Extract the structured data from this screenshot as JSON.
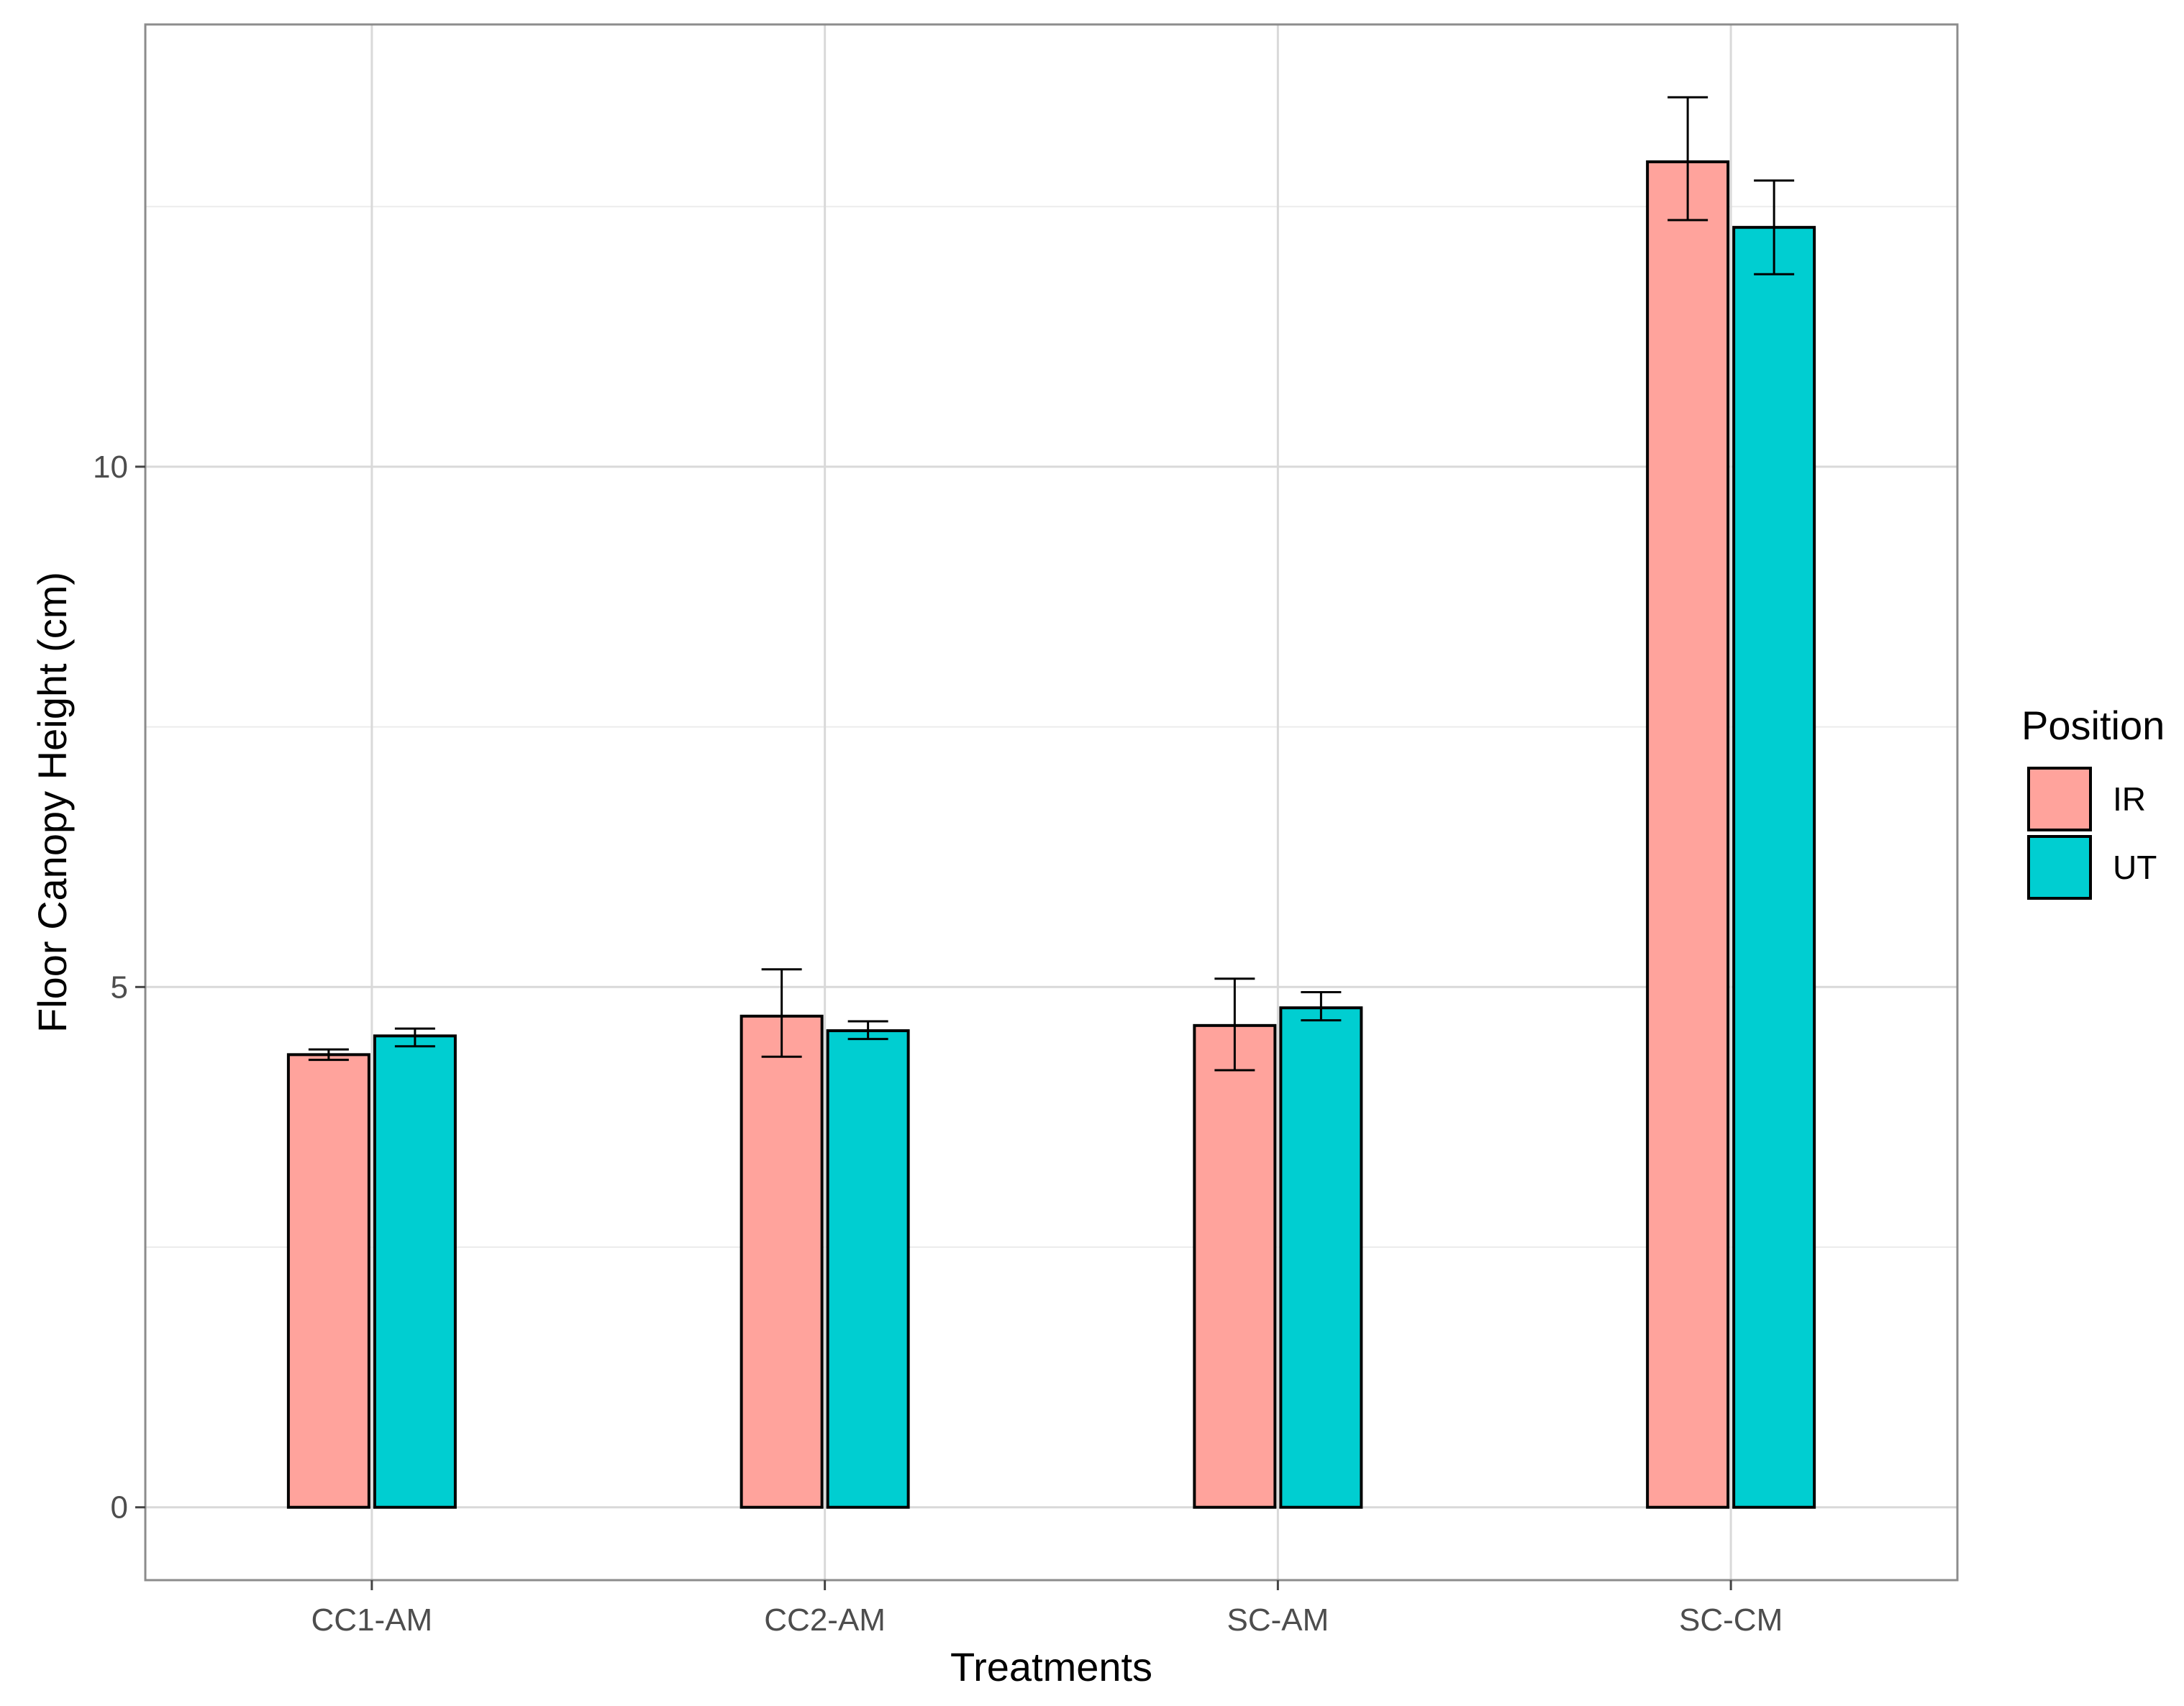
{
  "chart_data": {
    "type": "bar",
    "title": "",
    "xlabel": "Treatments",
    "ylabel": "Floor Canopy Height (cm)",
    "categories": [
      "CC1-AM",
      "CC2-AM",
      "SC-AM",
      "SC-CM"
    ],
    "ylim": [
      -0.7,
      14.25
    ],
    "yticks": [
      0,
      5,
      10
    ],
    "ytick_labels": [
      "0",
      "5",
      "10"
    ],
    "minor_gridlines": [
      2.5,
      7.5,
      12.5
    ],
    "grid": true,
    "series": [
      {
        "name": "IR",
        "color": "#F8766D",
        "fill": "#FFA39C",
        "values": [
          4.35,
          4.72,
          4.63,
          12.93
        ],
        "err_low": [
          4.3,
          4.33,
          4.2,
          12.37
        ],
        "err_high": [
          4.4,
          5.17,
          5.08,
          13.55
        ]
      },
      {
        "name": "UT",
        "color": "#00BFC4",
        "fill": "#00CED1",
        "values": [
          4.53,
          4.58,
          4.8,
          12.3
        ],
        "err_low": [
          4.43,
          4.5,
          4.68,
          11.85
        ],
        "err_high": [
          4.6,
          4.67,
          4.95,
          12.75
        ]
      }
    ],
    "legend": {
      "title": "Position",
      "position": "right",
      "items": [
        "IR",
        "UT"
      ]
    }
  }
}
